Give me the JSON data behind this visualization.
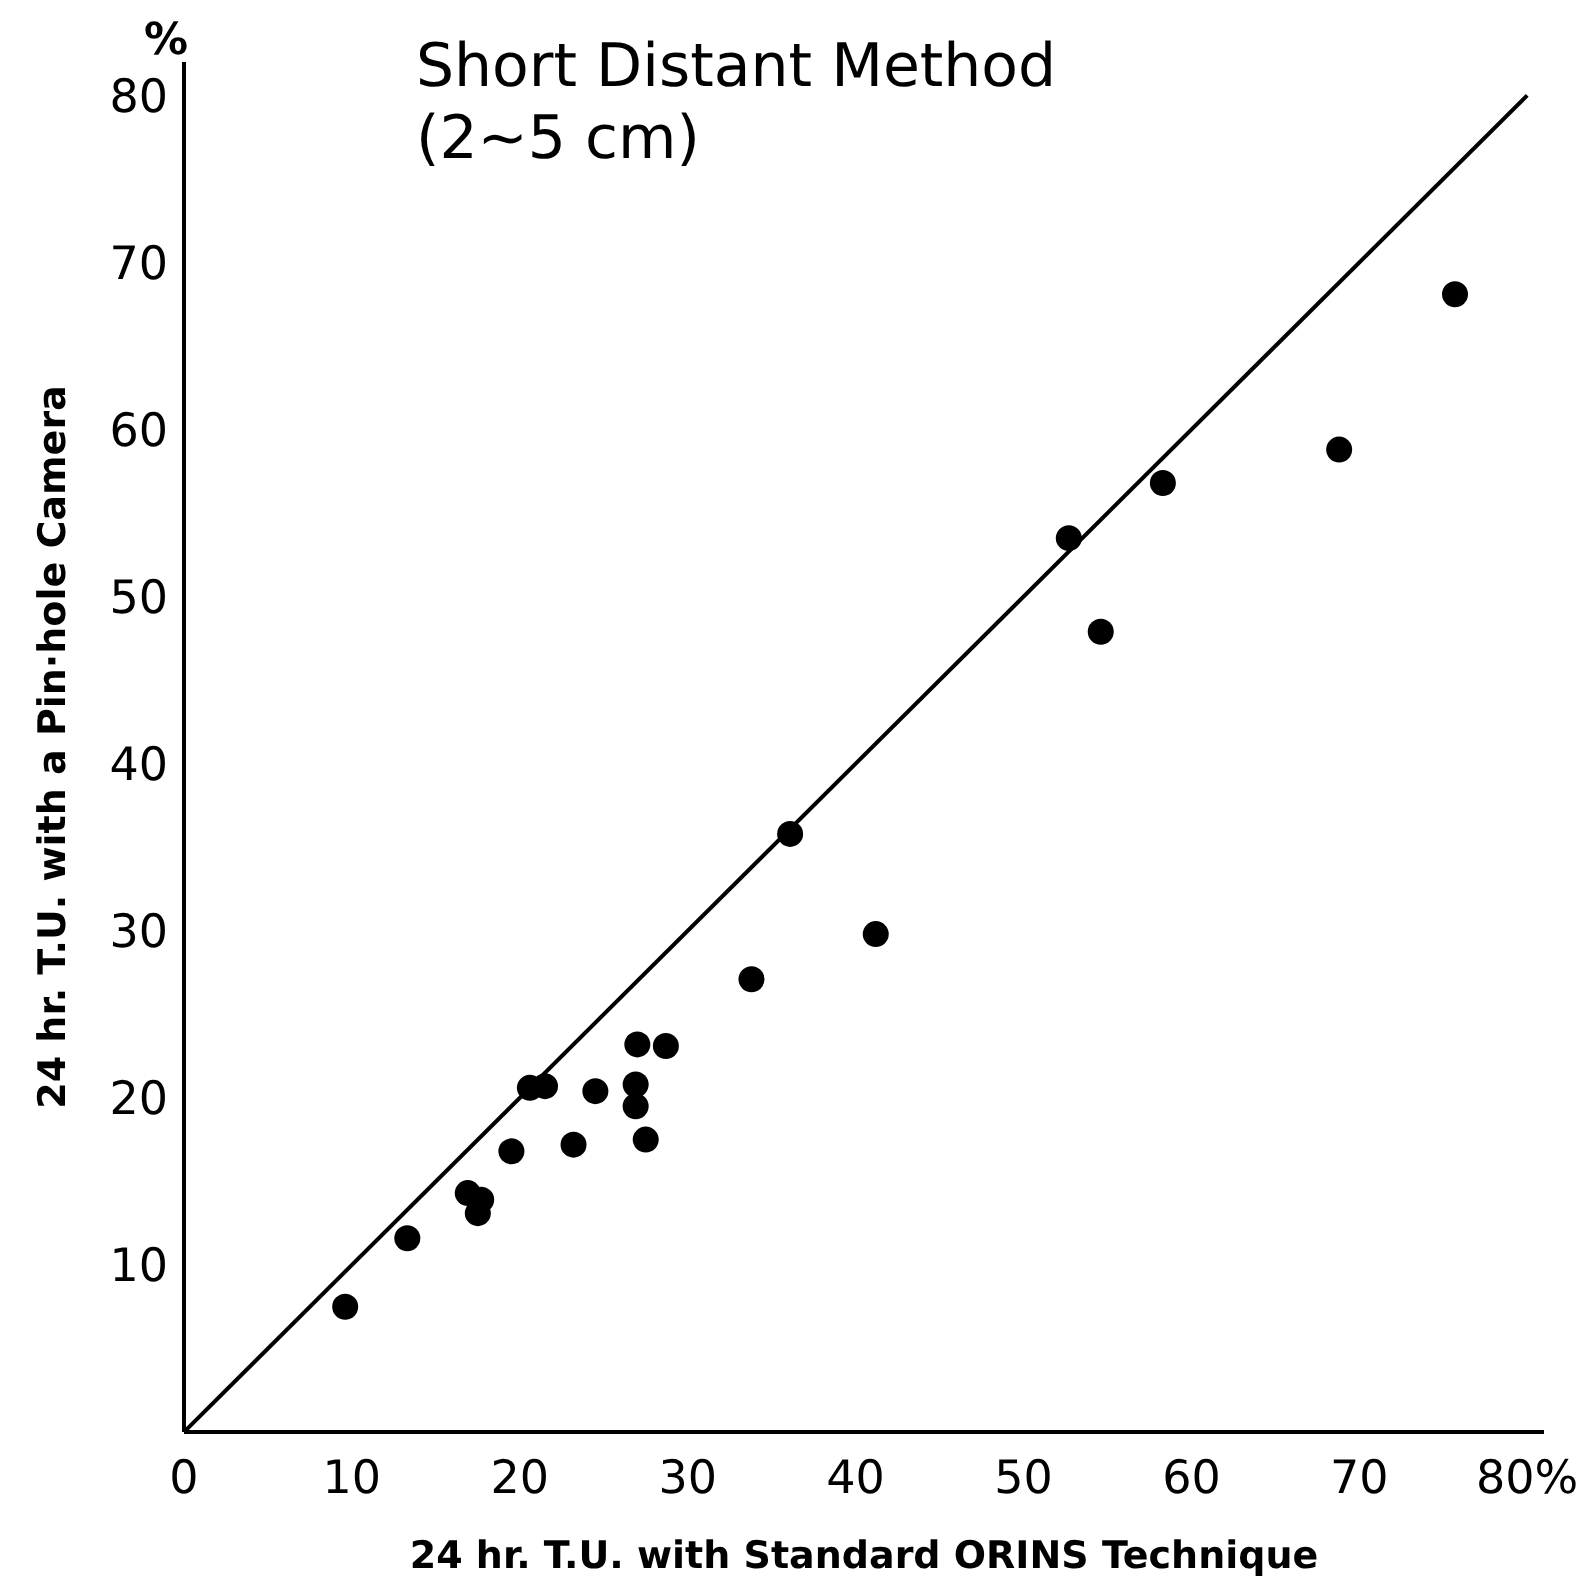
{
  "chart_data": {
    "type": "scatter",
    "title": "Short Distant Method",
    "subtitle": "(2~5 cm)",
    "xlabel": "24 hr. T.U. with Standard ORINS Technique",
    "ylabel": "24 hr. T.U. with a Pin·hole Camera",
    "annotations": [
      "%"
    ],
    "xlim": [
      0,
      81
    ],
    "ylim": [
      0,
      82
    ],
    "xticks": [
      0,
      10,
      20,
      30,
      40,
      50,
      60,
      70,
      {
        "value": 80,
        "label": "80%"
      }
    ],
    "yticks": [
      10,
      20,
      30,
      40,
      50,
      60,
      70,
      80
    ],
    "grid": false,
    "legend": false,
    "series": [
      {
        "type": "line",
        "color": "#000000",
        "x": [
          0,
          80
        ],
        "values": [
          0,
          80
        ]
      },
      {
        "marker": "circle",
        "color": "#000000",
        "x": [
          9.6,
          13.3,
          16.9,
          17.7,
          17.5,
          19.5,
          20.6,
          21.5,
          23.2,
          24.5,
          27.0,
          26.9,
          26.9,
          27.5,
          28.7,
          33.8,
          36.1,
          41.2,
          52.7,
          54.6,
          58.3,
          68.8,
          75.7
        ],
        "values": [
          7.5,
          11.6,
          14.3,
          13.9,
          13.1,
          16.8,
          20.6,
          20.7,
          17.2,
          20.4,
          23.2,
          20.8,
          19.5,
          17.5,
          23.1,
          27.1,
          35.8,
          29.8,
          53.5,
          47.9,
          56.8,
          58.8,
          68.1
        ]
      }
    ]
  }
}
